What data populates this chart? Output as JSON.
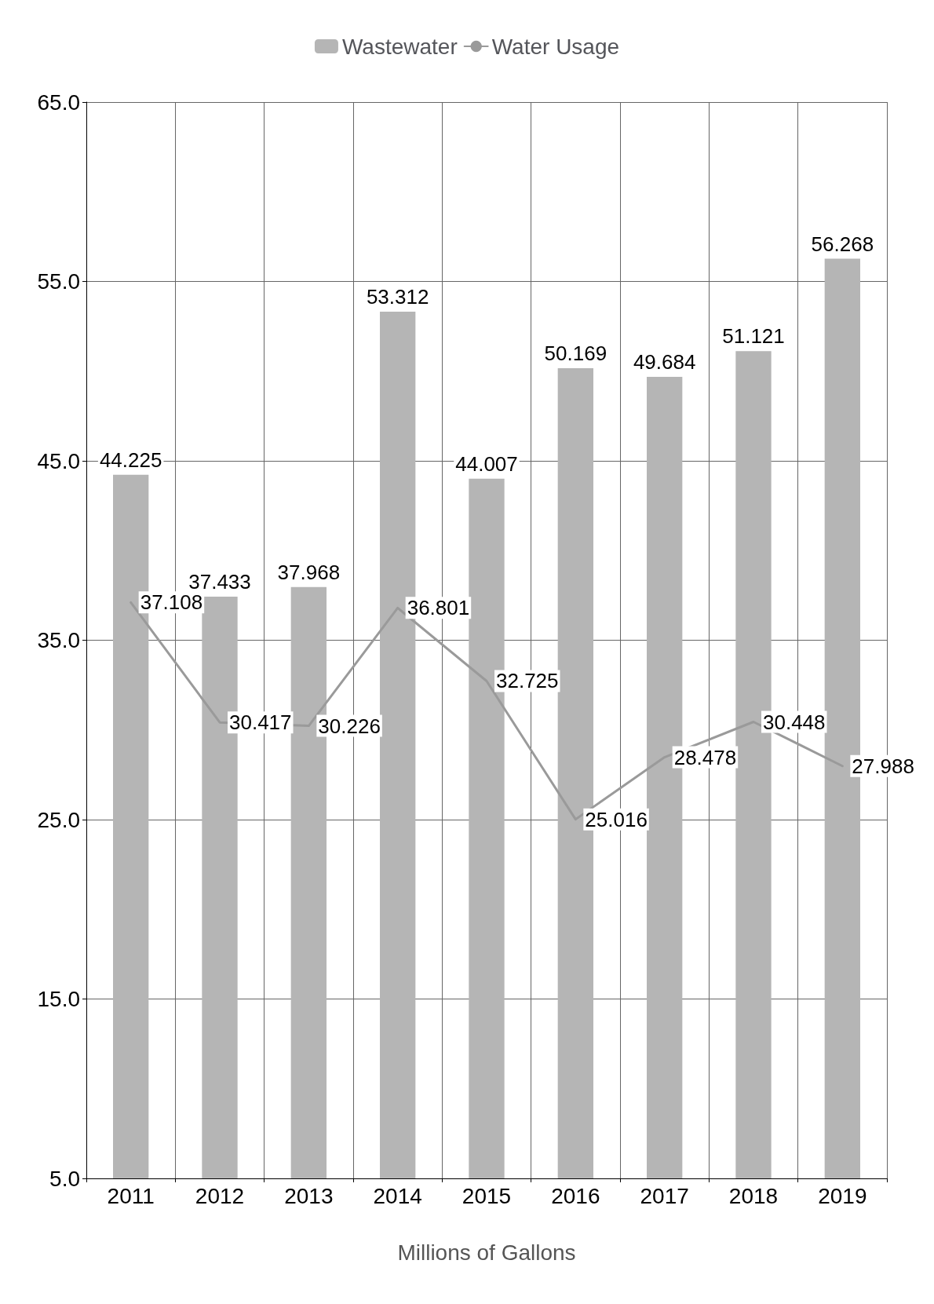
{
  "chart_data": {
    "type": "bar",
    "xlabel": "Millions of Gallons",
    "categories": [
      "2011",
      "2012",
      "2013",
      "2014",
      "2015",
      "2016",
      "2017",
      "2018",
      "2019"
    ],
    "series": [
      {
        "name": "Wastewater",
        "color": "#b5b5b5",
        "values": [
          44.225,
          37.433,
          37.968,
          53.312,
          44.007,
          50.169,
          49.684,
          51.121,
          56.268
        ]
      },
      {
        "name": "Water Usage",
        "type": "line",
        "color": "#9a9a9a",
        "values": [
          37.108,
          30.417,
          30.226,
          36.801,
          32.725,
          25.016,
          28.478,
          30.448,
          27.988
        ]
      }
    ],
    "ylim": [
      5,
      65
    ],
    "yticks": [
      {
        "value": 5,
        "label": "5.0"
      },
      {
        "value": 15,
        "label": "15.0"
      },
      {
        "value": 25,
        "label": "25.0"
      },
      {
        "value": 35,
        "label": "35.0"
      },
      {
        "value": 45,
        "label": "45.0"
      },
      {
        "value": 55,
        "label": "55.0"
      },
      {
        "value": 65,
        "label": "65.0"
      }
    ],
    "grid": true,
    "legend": "top",
    "data_labels": true,
    "marker": "none",
    "line_style": "solid"
  }
}
